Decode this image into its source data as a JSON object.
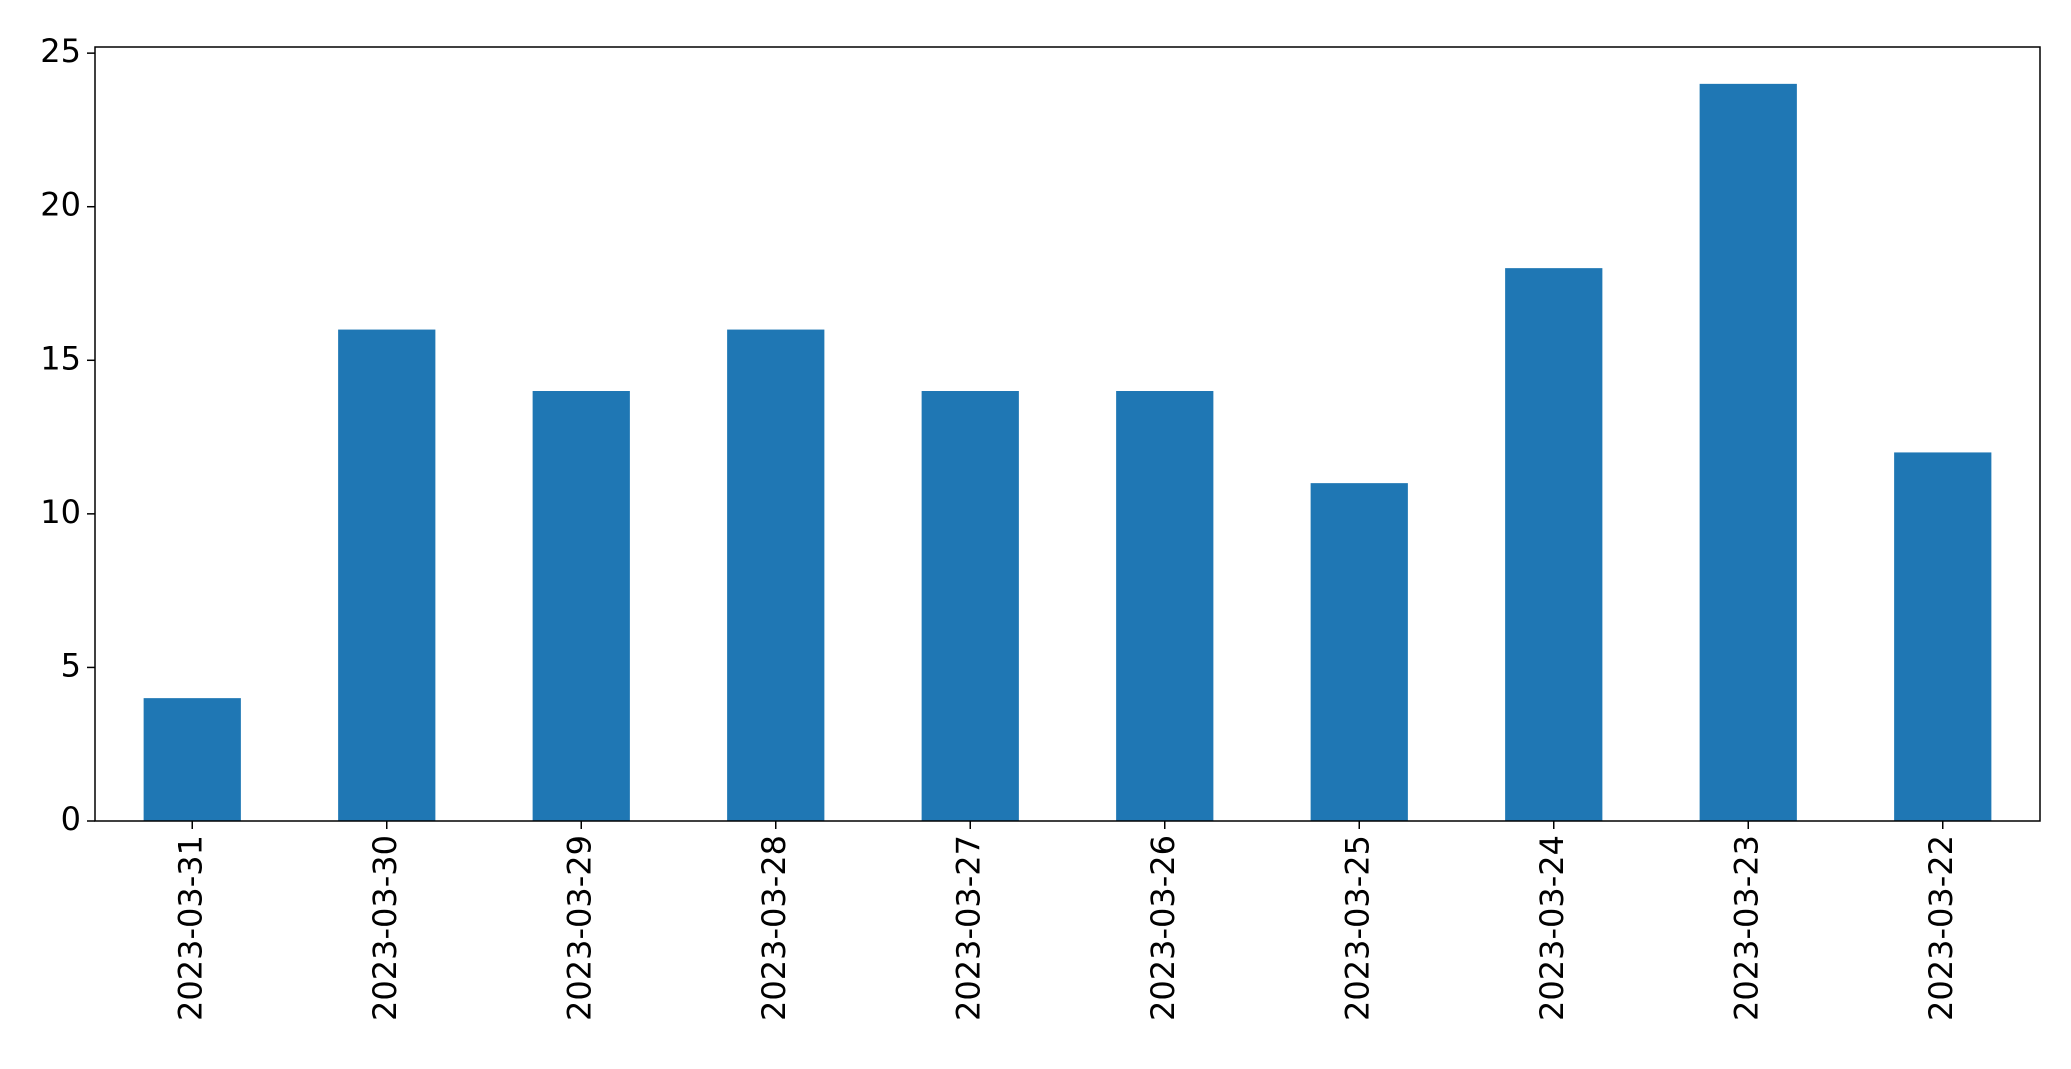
{
  "chart_data": {
    "type": "bar",
    "categories": [
      "2023-03-31",
      "2023-03-30",
      "2023-03-29",
      "2023-03-28",
      "2023-03-27",
      "2023-03-26",
      "2023-03-25",
      "2023-03-24",
      "2023-03-23",
      "2023-03-22"
    ],
    "values": [
      4,
      16,
      14,
      16,
      14,
      14,
      11,
      18,
      24,
      12
    ],
    "yticks": [
      "0",
      "5",
      "10",
      "15",
      "20",
      "25"
    ],
    "ylim": [
      0,
      25.2
    ],
    "title": "",
    "xlabel": "",
    "ylabel": "",
    "grid": false,
    "bar_color": "#1f77b4"
  }
}
